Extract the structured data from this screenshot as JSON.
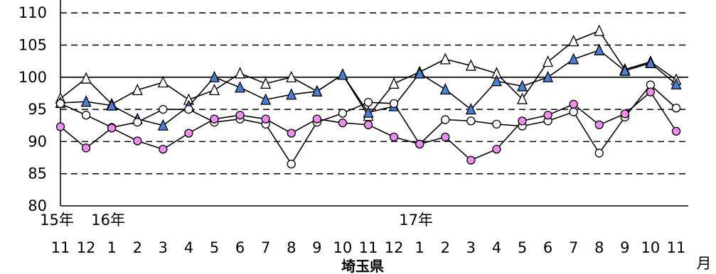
{
  "chart_data": {
    "type": "line",
    "title": "埼玉県",
    "xlabel": "月",
    "ylim": [
      80,
      112
    ],
    "yticks": [
      80,
      85,
      90,
      95,
      100,
      105,
      110
    ],
    "grid": "dashed-horizontal",
    "reference_line": 100,
    "categories": [
      "11",
      "12",
      "1",
      "2",
      "3",
      "4",
      "5",
      "6",
      "7",
      "8",
      "9",
      "10",
      "11",
      "12",
      "1",
      "2",
      "3",
      "4",
      "5",
      "6",
      "7",
      "8",
      "9",
      "10",
      "11"
    ],
    "year_labels": [
      {
        "index": 0,
        "text": "15年"
      },
      {
        "index": 2,
        "text": "16年"
      },
      {
        "index": 14,
        "text": "17年"
      }
    ],
    "series": [
      {
        "marker": "open-triangle",
        "color": "#000000",
        "values": [
          96.7,
          99.8,
          95.8,
          98.0,
          99.2,
          96.5,
          98.0,
          100.6,
          99.0,
          100.0,
          97.8,
          100.4,
          94.0,
          99.0,
          100.8,
          102.8,
          101.8,
          100.6,
          96.6,
          102.4,
          105.6,
          107.2,
          101.2,
          102.4,
          99.6
        ]
      },
      {
        "marker": "filled-triangle",
        "color": "#4a7fd6",
        "values": [
          96.0,
          96.2,
          95.6,
          93.5,
          92.5,
          95.5,
          100.0,
          98.4,
          96.5,
          97.3,
          97.8,
          100.4,
          94.5,
          95.5,
          100.6,
          98.1,
          95.0,
          99.4,
          98.6,
          100.0,
          102.8,
          104.2,
          101.0,
          102.2,
          98.9
        ]
      },
      {
        "marker": "open-circle",
        "color": "#000000",
        "values": [
          95.9,
          94.1,
          92.2,
          93.0,
          95.0,
          95.0,
          93.0,
          93.5,
          92.7,
          86.5,
          93.0,
          94.4,
          96.1,
          95.9,
          89.6,
          93.4,
          93.2,
          92.7,
          92.4,
          93.2,
          94.6,
          88.2,
          93.8,
          98.8,
          95.2
        ]
      },
      {
        "marker": "filled-circle",
        "color": "#f08ef0",
        "values": [
          92.3,
          89.0,
          92.1,
          90.1,
          88.8,
          91.3,
          93.5,
          94.1,
          93.5,
          91.3,
          93.5,
          92.9,
          92.6,
          90.7,
          89.6,
          90.7,
          87.1,
          88.8,
          93.2,
          94.1,
          95.8,
          92.6,
          94.3,
          97.7,
          91.6
        ]
      }
    ]
  }
}
